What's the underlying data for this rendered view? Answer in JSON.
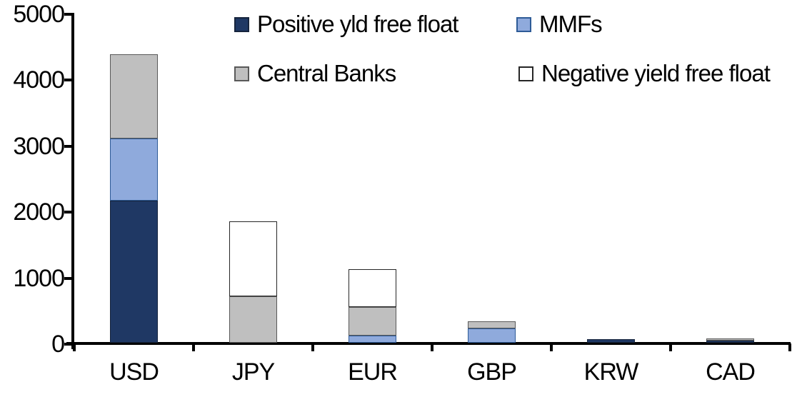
{
  "chart_data": {
    "type": "bar",
    "stacked": true,
    "title": "",
    "xlabel": "",
    "ylabel": "",
    "categories": [
      "USD",
      "JPY",
      "EUR",
      "GBP",
      "KRW",
      "CAD"
    ],
    "series": [
      {
        "name": "Positive yld free float",
        "color": "#1F3864",
        "border_color": "#16243C",
        "values": [
          2150,
          0,
          0,
          0,
          50,
          35
        ]
      },
      {
        "name": "MMFs",
        "color": "#8FAADC",
        "border_color": "#2E5B97",
        "values": [
          940,
          0,
          110,
          220,
          0,
          0
        ]
      },
      {
        "name": "Central Banks",
        "color": "#BFBFBF",
        "border_color": "#595959",
        "values": [
          1280,
          700,
          430,
          110,
          0,
          35
        ]
      },
      {
        "name": "Negative yield free float",
        "color": "#FFFFFF",
        "border_color": "#262626",
        "values": [
          0,
          1140,
          570,
          0,
          0,
          0
        ]
      }
    ],
    "totals": [
      4370,
      1840,
      1110,
      330,
      50,
      70
    ],
    "y_axis": {
      "min": 0,
      "max": 5000,
      "step": 1000,
      "tick_labels": [
        "0",
        "1000",
        "2000",
        "3000",
        "4000",
        "5000"
      ]
    },
    "x_axis": {
      "labels": [
        "USD",
        "JPY",
        "EUR",
        "GBP",
        "KRW",
        "CAD"
      ]
    },
    "legend_position": "top",
    "grid": false,
    "axis_color": "#000000",
    "background_color": "#FFFFFF"
  }
}
